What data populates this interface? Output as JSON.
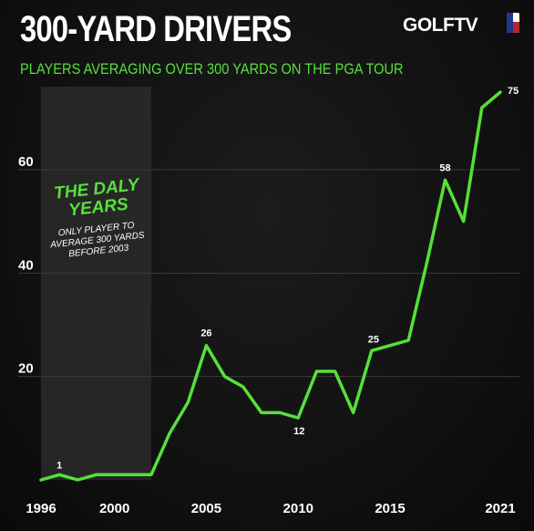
{
  "header": {
    "title": "300-YARD DRIVERS",
    "subtitle": "PLAYERS AVERAGING OVER 300 YARDS ON THE PGA TOUR",
    "brand": "GOLFTV"
  },
  "annotation": {
    "title_line1": "THE DALY",
    "title_line2": "YEARS",
    "note_line1": "ONLY PLAYER TO",
    "note_line2": "AVERAGE 300 YARDS",
    "note_line3": "BEFORE 2003"
  },
  "colors": {
    "line": "#56e03a",
    "band": "#2a2a2a",
    "background": "#111111"
  },
  "chart_data": {
    "type": "line",
    "title": "300-YARD DRIVERS",
    "subtitle": "PLAYERS AVERAGING OVER 300 YARDS ON THE PGA TOUR",
    "xlabel": "",
    "ylabel": "",
    "xlim": [
      1996,
      2021
    ],
    "ylim": [
      0,
      75
    ],
    "yticks": [
      20,
      40,
      60
    ],
    "xticks": [
      1996,
      2000,
      2005,
      2010,
      2015,
      2021
    ],
    "grid": true,
    "legend": "none",
    "highlight_range": [
      1996,
      2002
    ],
    "x": [
      1996,
      1997,
      1998,
      1999,
      2000,
      2001,
      2002,
      2003,
      2004,
      2005,
      2006,
      2007,
      2008,
      2009,
      2010,
      2011,
      2012,
      2013,
      2014,
      2015,
      2016,
      2017,
      2018,
      2019,
      2020,
      2021
    ],
    "series": [
      {
        "values": [
          0,
          1,
          0,
          1,
          1,
          1,
          1,
          9,
          15,
          26,
          20,
          18,
          13,
          13,
          12,
          21,
          21,
          13,
          25,
          26,
          27,
          42,
          58,
          50,
          72,
          75
        ]
      }
    ],
    "data_labels": [
      {
        "x": 1997,
        "label": "1"
      },
      {
        "x": 2005,
        "label": "26"
      },
      {
        "x": 2010,
        "label": "12"
      },
      {
        "x": 2014,
        "label": "25"
      },
      {
        "x": 2018,
        "label": "58"
      },
      {
        "x": 2021,
        "label": "75"
      }
    ]
  }
}
